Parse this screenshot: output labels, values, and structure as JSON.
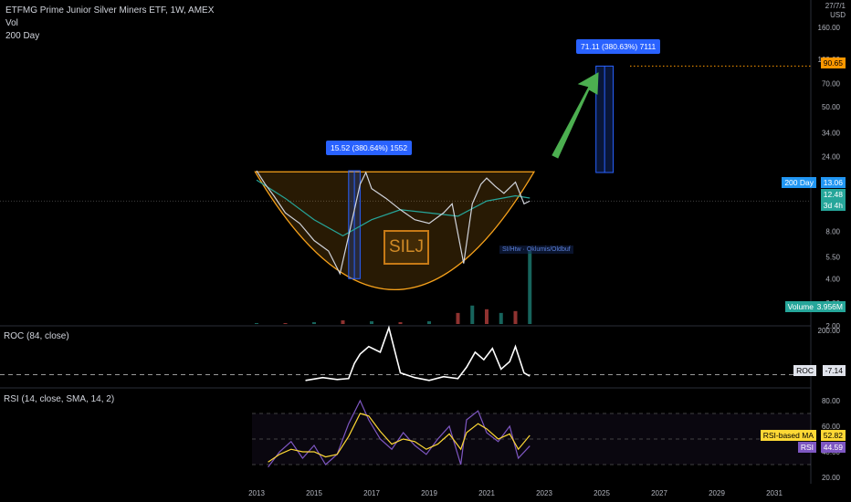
{
  "header": {
    "symbol_title": "ETFMG Prime Junior Silver Miners ETF, 1W, AMEX",
    "vol_label": "Vol",
    "ma_label": "200 Day",
    "currency_line1": "27/7/1",
    "currency_line2": "USD"
  },
  "annotations": {
    "measure_box_1": "15.52 (380.64%) 1552",
    "measure_box_2": "71.11 (380.63%) 7111",
    "ticker_watermark": "SILJ",
    "news_label": "SI/Htw · Oklumis/Oldbuf"
  },
  "price_scale": {
    "ticks": [
      "160.00",
      "100.00",
      "70.00",
      "50.00",
      "34.00",
      "24.00",
      "16.00",
      "8.00",
      "5.50",
      "4.00",
      "2.80",
      "2.00"
    ],
    "target_tag": "90.65",
    "ma_tag_label": "200 Day",
    "ma_tag_value": "13.06",
    "last_price_tag": "12.48",
    "countdown_tag": "3d 4h",
    "volume_tag_label": "Volume",
    "volume_tag_value": "3.956M"
  },
  "roc_pane": {
    "title": "ROC (84, close)",
    "ticks": [
      "200.00"
    ],
    "tag_label": "ROC",
    "tag_value": "-7.14"
  },
  "rsi_pane": {
    "title": "RSI (14, close, SMA, 14, 2)",
    "ticks": [
      "80.00",
      "60.00",
      "40.00",
      "20.00"
    ],
    "ma_tag_label": "RSI-based MA",
    "ma_tag_value": "52.82",
    "rsi_tag_label": "RSI",
    "rsi_tag_value": "44.59"
  },
  "time_axis": {
    "labels": [
      "2013",
      "2015",
      "2017",
      "2019",
      "2021",
      "2023",
      "2025",
      "2027",
      "2029",
      "2031"
    ]
  },
  "colors": {
    "background": "#000000",
    "cup_fill": "#f7a21b",
    "price_up": "#26a69a",
    "price_down": "#ef5350",
    "measure_box": "#2962ff",
    "arrow": "#4caf50",
    "target_line": "#ff9800",
    "ma_tag": "#2196f3",
    "rsi_line": "#7e57c2",
    "rsi_ma_line": "#fdd835",
    "roc_line": "#ffffff"
  },
  "chart_data": [
    {
      "type": "line",
      "name": "price",
      "scale": "log",
      "x": [
        2013.0,
        2013.3,
        2013.6,
        2014.0,
        2014.5,
        2015.0,
        2015.5,
        2015.9,
        2016.2,
        2016.6,
        2016.8,
        2017.0,
        2017.5,
        2018.0,
        2018.5,
        2019.0,
        2019.5,
        2019.8,
        2020.2,
        2020.5,
        2020.8,
        2021.0,
        2021.3,
        2021.6,
        2022.0,
        2022.3,
        2022.5
      ],
      "y": [
        19.5,
        16.0,
        13.5,
        10.5,
        9.0,
        7.0,
        6.0,
        4.3,
        7.5,
        16.0,
        19.0,
        15.0,
        13.0,
        11.0,
        9.5,
        9.0,
        10.5,
        12.0,
        5.0,
        12.0,
        16.0,
        17.5,
        15.5,
        14.0,
        16.5,
        12.0,
        12.5
      ],
      "ma_200_x": [
        2013.0,
        2014.0,
        2015.0,
        2016.0,
        2017.0,
        2018.0,
        2019.0,
        2020.0,
        2021.0,
        2022.0,
        2022.5
      ],
      "ma_200_y": [
        17.0,
        13.0,
        9.5,
        7.5,
        9.5,
        11.0,
        10.5,
        10.0,
        12.5,
        13.5,
        13.06
      ],
      "ylim": [
        2.0,
        160.0
      ],
      "measure_1": {
        "x": [
          2016.2,
          2016.6
        ],
        "y": [
          4.0,
          19.5
        ],
        "label": "15.52 (380.64%) 1552"
      },
      "measure_2": {
        "x": [
          2024.8,
          2025.4
        ],
        "y": [
          19.0,
          90.65
        ],
        "label": "71.11 (380.63%) 7111"
      }
    },
    {
      "type": "bar",
      "name": "volume",
      "x": [
        2013,
        2014,
        2015,
        2016,
        2017,
        2018,
        2019,
        2020,
        2020.5,
        2021,
        2021.5,
        2022,
        2022.5
      ],
      "values": [
        0.05,
        0.05,
        0.1,
        0.2,
        0.15,
        0.1,
        0.15,
        0.6,
        1.0,
        0.8,
        0.6,
        0.7,
        3.956
      ],
      "unit": "M"
    },
    {
      "type": "line",
      "name": "ROC (84, close)",
      "x": [
        2014.7,
        2015.3,
        2015.8,
        2016.2,
        2016.4,
        2016.6,
        2016.9,
        2017.3,
        2017.6,
        2018.0,
        2018.5,
        2019.0,
        2019.5,
        2020.0,
        2020.3,
        2020.6,
        2020.9,
        2021.2,
        2021.5,
        2021.8,
        2022.0,
        2022.3,
        2022.5
      ],
      "y": [
        -30,
        -15,
        -25,
        -20,
        60,
        110,
        150,
        120,
        250,
        10,
        -15,
        -30,
        -10,
        -20,
        40,
        120,
        80,
        140,
        30,
        70,
        150,
        10,
        -7.14
      ],
      "ylim": [
        -60,
        260
      ]
    },
    {
      "type": "line",
      "name": "RSI (14, close, SMA, 14, 2)",
      "x": [
        2013.4,
        2013.8,
        2014.2,
        2014.6,
        2015.0,
        2015.4,
        2015.8,
        2016.2,
        2016.6,
        2016.9,
        2017.3,
        2017.7,
        2018.1,
        2018.5,
        2018.9,
        2019.3,
        2019.7,
        2020.1,
        2020.3,
        2020.7,
        2021.0,
        2021.4,
        2021.8,
        2022.1,
        2022.5
      ],
      "y": [
        28,
        40,
        48,
        35,
        45,
        30,
        38,
        62,
        80,
        65,
        50,
        42,
        55,
        45,
        38,
        50,
        60,
        30,
        65,
        72,
        55,
        48,
        60,
        35,
        44.59
      ],
      "ma_y": [
        32,
        38,
        42,
        40,
        40,
        36,
        38,
        52,
        70,
        68,
        56,
        46,
        50,
        48,
        42,
        46,
        54,
        42,
        55,
        62,
        58,
        50,
        54,
        42,
        52.82
      ],
      "ylim": [
        15,
        90
      ]
    }
  ]
}
